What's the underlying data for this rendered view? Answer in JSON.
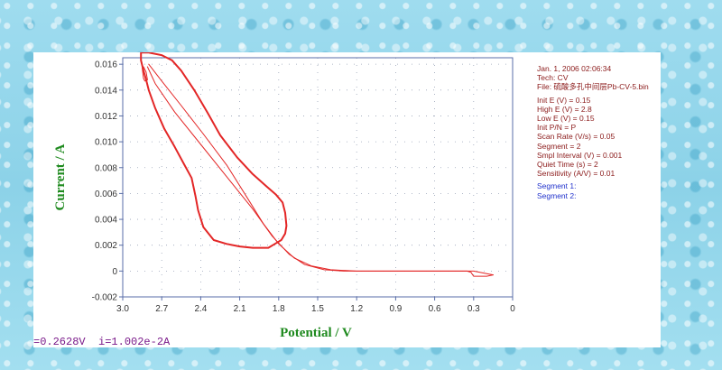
{
  "chart_data": {
    "type": "line",
    "title": "",
    "xlabel": "Potential / V",
    "ylabel": "Current / A",
    "xlim": [
      3.0,
      0.0
    ],
    "ylim": [
      -0.002,
      0.0165
    ],
    "x_axis_reversed": true,
    "xticks": [
      "3.0",
      "2.7",
      "2.4",
      "2.1",
      "1.8",
      "1.5",
      "1.2",
      "0.9",
      "0.6",
      "0.3",
      "0"
    ],
    "xtick_values": [
      3.0,
      2.7,
      2.4,
      2.1,
      1.8,
      1.5,
      1.2,
      0.9,
      0.6,
      0.3,
      0.0
    ],
    "yticks": [
      "-0.002",
      "0",
      "0.002",
      "0.004",
      "0.006",
      "0.008",
      "0.010",
      "0.012",
      "0.014",
      "0.016"
    ],
    "ytick_values": [
      -0.002,
      0,
      0.002,
      0.004,
      0.006,
      0.008,
      0.01,
      0.012,
      0.014,
      0.016
    ],
    "grid": "dotted",
    "line_color": "#e32626",
    "series": [
      {
        "name": "",
        "segment": "loop",
        "points": [
          [
            1.93,
            0.0018
          ],
          [
            2.0,
            0.0018
          ],
          [
            2.1,
            0.0019
          ],
          [
            2.2,
            0.0021
          ],
          [
            2.3,
            0.0024
          ],
          [
            2.38,
            0.0034
          ],
          [
            2.42,
            0.0047
          ],
          [
            2.44,
            0.0058
          ],
          [
            2.47,
            0.0072
          ],
          [
            2.53,
            0.0083
          ],
          [
            2.6,
            0.0096
          ],
          [
            2.68,
            0.011
          ],
          [
            2.75,
            0.0126
          ],
          [
            2.8,
            0.014
          ],
          [
            2.82,
            0.0148
          ],
          [
            2.84,
            0.0155
          ],
          [
            2.86,
            0.0163
          ],
          [
            2.86,
            0.0169
          ],
          [
            2.8,
            0.0169
          ],
          [
            2.7,
            0.0167
          ],
          [
            2.62,
            0.0163
          ],
          [
            2.55,
            0.0155
          ],
          [
            2.45,
            0.014
          ],
          [
            2.35,
            0.0123
          ],
          [
            2.25,
            0.0105
          ],
          [
            2.12,
            0.0088
          ],
          [
            2.0,
            0.0075
          ],
          [
            1.9,
            0.0066
          ],
          [
            1.82,
            0.0059
          ],
          [
            1.77,
            0.0053
          ],
          [
            1.75,
            0.0045
          ],
          [
            1.74,
            0.0035
          ],
          [
            1.75,
            0.0029
          ],
          [
            1.78,
            0.0024
          ],
          [
            1.83,
            0.0021
          ],
          [
            1.88,
            0.0018
          ],
          [
            1.93,
            0.0018
          ]
        ]
      },
      {
        "name": "",
        "segment": "scan-out",
        "points": [
          [
            2.81,
            0.0158
          ],
          [
            2.75,
            0.0145
          ],
          [
            2.6,
            0.0123
          ],
          [
            2.4,
            0.0098
          ],
          [
            2.2,
            0.0073
          ],
          [
            2.0,
            0.0048
          ],
          [
            1.85,
            0.0027
          ],
          [
            1.72,
            0.0013
          ],
          [
            1.6,
            0.0005
          ],
          [
            1.45,
            0.0001
          ],
          [
            1.3,
            0.0
          ],
          [
            0.9,
            0.0
          ],
          [
            0.6,
            0.0
          ],
          [
            0.3,
            0.0
          ],
          [
            0.15,
            -0.0003
          ]
        ]
      },
      {
        "name": "",
        "segment": "scan-return",
        "points": [
          [
            0.15,
            -0.0003
          ],
          [
            0.2,
            -0.0004
          ],
          [
            0.3,
            -0.0004
          ],
          [
            0.32,
            -0.0001
          ],
          [
            0.35,
            0.0
          ],
          [
            0.6,
            0.0
          ],
          [
            0.9,
            0.0
          ],
          [
            1.2,
            0.0
          ],
          [
            1.4,
            0.0001
          ],
          [
            1.55,
            0.0004
          ],
          [
            1.68,
            0.001
          ],
          [
            1.8,
            0.0021
          ],
          [
            1.92,
            0.0037
          ],
          [
            2.05,
            0.0058
          ],
          [
            2.2,
            0.0082
          ],
          [
            2.38,
            0.0106
          ],
          [
            2.55,
            0.0128
          ],
          [
            2.7,
            0.0147
          ],
          [
            2.8,
            0.016
          ]
        ]
      },
      {
        "name": "",
        "segment": "start-hook",
        "points": [
          [
            2.85,
            0.0157
          ],
          [
            2.84,
            0.0149
          ],
          [
            2.83,
            0.0147
          ],
          [
            2.81,
            0.0148
          ],
          [
            2.82,
            0.0154
          ],
          [
            2.84,
            0.0158
          ]
        ]
      }
    ]
  },
  "info": {
    "datetime": "Jan. 1, 2006   02:06:34",
    "tech": "Tech: CV",
    "file": "File: 硫酸多孔中间层Pb-CV-5.bin",
    "params": [
      "Init E (V) = 0.15",
      "High E (V) = 2.8",
      "Low E (V) = 0.15",
      "Init P/N = P",
      "Scan Rate (V/s) = 0.05",
      "Segment = 2",
      "Smpl Interval (V) = 0.001",
      "Quiet Time (s) = 2",
      "Sensitivity (A/V) = 0.01"
    ],
    "segments": [
      "Segment 1:",
      "Segment 2:"
    ]
  },
  "status": {
    "readout": "=0.2628V  i=1.002e-2A"
  }
}
